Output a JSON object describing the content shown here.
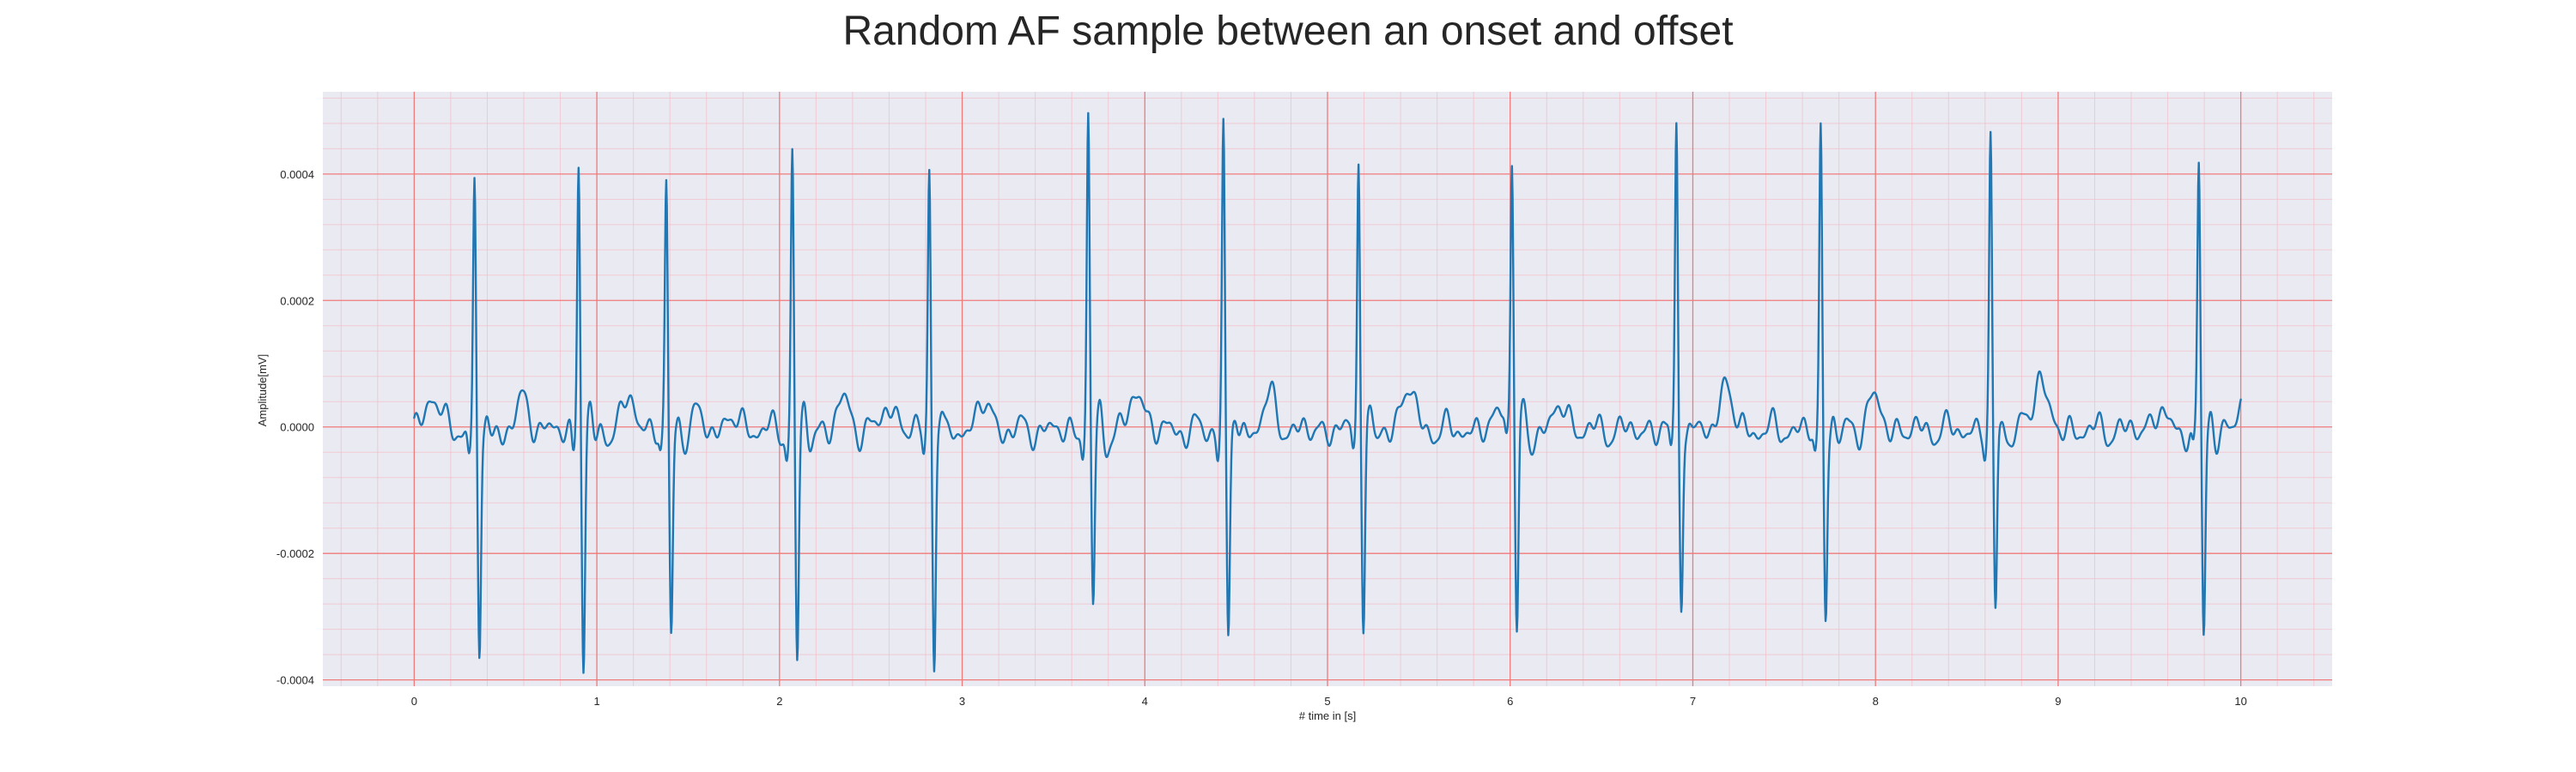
{
  "chart_data": {
    "type": "line",
    "title": "Random AF sample between an onset and offset",
    "xlabel": "# time in [s]",
    "ylabel": "Amplitude[mV]",
    "xlim": [
      -0.5,
      10.5
    ],
    "ylim": [
      -0.00041,
      0.00053
    ],
    "x_ticks": [
      0,
      1,
      2,
      3,
      4,
      5,
      6,
      7,
      8,
      9,
      10
    ],
    "y_ticks": [
      -0.0004,
      -0.0002,
      0.0,
      0.0002,
      0.0004
    ],
    "x_tick_labels": [
      "0",
      "1",
      "2",
      "3",
      "4",
      "5",
      "6",
      "7",
      "8",
      "9",
      "10"
    ],
    "y_tick_labels": [
      "-0.0004",
      "-0.0002",
      "0.0000",
      "0.0002",
      "0.0004"
    ],
    "grid": true,
    "minor_grid": true,
    "x_range": [
      0,
      10
    ],
    "sample_rate_hz": 300,
    "baseline": -5e-06,
    "beats": [
      {
        "t": 0.33,
        "r": 0.00039,
        "s": -0.00037
      },
      {
        "t": 0.9,
        "r": 0.00043,
        "s": -0.000375
      },
      {
        "t": 1.38,
        "r": 0.000385,
        "s": -0.00033
      },
      {
        "t": 2.07,
        "r": 0.000435,
        "s": -0.000365
      },
      {
        "t": 2.82,
        "r": 0.00042,
        "s": -0.000365
      },
      {
        "t": 3.69,
        "r": 0.00049,
        "s": -0.00028
      },
      {
        "t": 4.43,
        "r": 0.00048,
        "s": -0.00033
      },
      {
        "t": 5.17,
        "r": 0.000455,
        "s": -0.000315
      },
      {
        "t": 6.01,
        "r": 0.00042,
        "s": -0.00033
      },
      {
        "t": 6.91,
        "r": 0.00049,
        "s": -0.000285
      },
      {
        "t": 7.7,
        "r": 0.000475,
        "s": -0.0003
      },
      {
        "t": 8.63,
        "r": 0.00046,
        "s": -0.000295
      },
      {
        "t": 9.77,
        "r": 0.00041,
        "s": -0.000325
      }
    ],
    "waves": [
      {
        "t": 0.1,
        "a": 6e-05
      },
      {
        "t": 0.6,
        "a": 4.5e-05
      },
      {
        "t": 1.18,
        "a": 5e-05
      },
      {
        "t": 1.56,
        "a": 2e-05
      },
      {
        "t": 1.76,
        "a": 2e-05
      },
      {
        "t": 2.35,
        "a": 4.5e-05
      },
      {
        "t": 2.6,
        "a": 4e-05
      },
      {
        "t": 3.12,
        "a": 4.5e-05
      },
      {
        "t": 3.96,
        "a": 6.5e-05
      },
      {
        "t": 4.68,
        "a": 5e-05
      },
      {
        "t": 5.44,
        "a": 7e-05
      },
      {
        "t": 5.96,
        "a": 4e-05
      },
      {
        "t": 6.28,
        "a": 4e-05
      },
      {
        "t": 7.18,
        "a": 7e-05
      },
      {
        "t": 7.99,
        "a": 5e-05
      },
      {
        "t": 8.9,
        "a": 9e-05
      },
      {
        "t": 9.55,
        "a": 3e-05
      },
      {
        "t": 10.0,
        "a": 3e-05
      }
    ],
    "colors": {
      "line": "#1f77b4",
      "plot_background": "#eaeaf2",
      "major_grid": "#ef7a7a",
      "minor_grid": "#f4bcc6",
      "text": "#262626"
    }
  }
}
